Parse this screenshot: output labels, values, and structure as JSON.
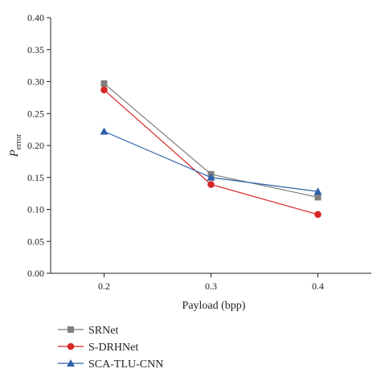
{
  "chart_data": {
    "type": "line",
    "x": [
      0.2,
      0.3,
      0.4
    ],
    "x_tick_labels": [
      "0.2",
      "0.3",
      "0.4"
    ],
    "xlim": [
      0.15,
      0.45
    ],
    "y_ticks": [
      0.0,
      0.05,
      0.1,
      0.15,
      0.2,
      0.25,
      0.3,
      0.35,
      0.4
    ],
    "y_tick_labels": [
      "0.00",
      "0.05",
      "0.10",
      "0.15",
      "0.20",
      "0.25",
      "0.30",
      "0.35",
      "0.40"
    ],
    "ylim": [
      0.0,
      0.4
    ],
    "xlabel": "Payload (bpp)",
    "ylabel_main": "P",
    "ylabel_sub": "error",
    "grid": false,
    "legend_position": "bottom-left",
    "series": [
      {
        "name": "SRNet",
        "marker": "square",
        "color": "#7f7f7f",
        "values": [
          0.297,
          0.155,
          0.119
        ]
      },
      {
        "name": "S-DRHNet",
        "marker": "circle",
        "color": "#d62728",
        "values": [
          0.287,
          0.139,
          0.092
        ]
      },
      {
        "name": "SCA-TLU-CNN",
        "marker": "triangle",
        "color": "#2f5faa",
        "values": [
          0.222,
          0.15,
          0.128
        ]
      }
    ]
  }
}
